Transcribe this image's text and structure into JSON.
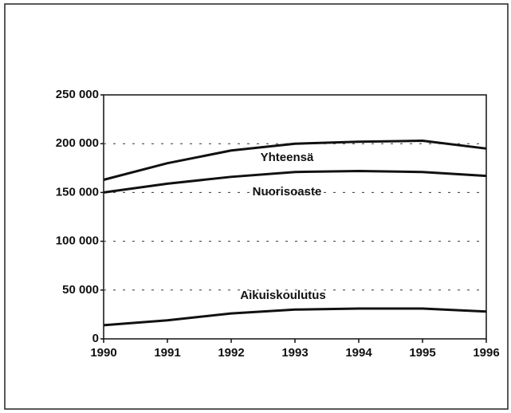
{
  "chart_data": {
    "type": "line",
    "x": [
      1990,
      1991,
      1992,
      1993,
      1994,
      1995,
      1996
    ],
    "series": [
      {
        "name": "Yhteensä",
        "color": "#111111",
        "values": [
          163000,
          180000,
          193000,
          200000,
          202000,
          203000,
          195000
        ]
      },
      {
        "name": "Nuorisoaste",
        "color": "#111111",
        "values": [
          150000,
          159000,
          166000,
          171000,
          172000,
          171000,
          167000
        ]
      },
      {
        "name": "Aikuiskoulutus",
        "color": "#111111",
        "values": [
          14000,
          19000,
          26000,
          30000,
          31000,
          31000,
          28000
        ]
      }
    ],
    "xlim": [
      1990,
      1996
    ],
    "xticks": [
      1990,
      1991,
      1992,
      1993,
      1994,
      1995,
      1996
    ],
    "ylim": [
      0,
      250000
    ],
    "yticks": [
      0,
      {
        "value": 50000,
        "label": "50 000"
      },
      {
        "value": 100000,
        "label": "100 000"
      },
      {
        "value": 150000,
        "label": "150 000"
      },
      {
        "value": 200000,
        "label": "200 000"
      },
      {
        "value": 250000,
        "label": "250 000"
      }
    ],
    "grid": true
  }
}
